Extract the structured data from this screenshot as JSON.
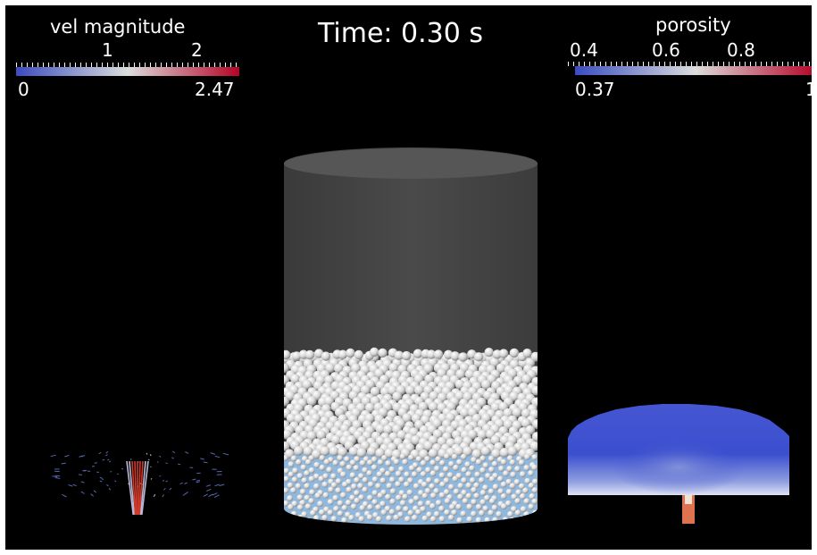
{
  "time_label": "Time: 0.30 s",
  "velocity_legend": {
    "title": "vel magnitude",
    "ticks": [
      "1",
      "2"
    ],
    "min_label": "0",
    "max_label": "2.47",
    "colors": [
      "#3a4cc0",
      "#dcdddd",
      "#b40426"
    ]
  },
  "porosity_legend": {
    "title": "porosity",
    "ticks": [
      "0.4",
      "0.6",
      "0.8"
    ],
    "min_label": "0.37",
    "max_label": "1",
    "colors": [
      "#3a4cc0",
      "#dcdddd",
      "#b40426"
    ]
  },
  "colors": {
    "background": "#000000",
    "cylinder_wall": "#444444",
    "particle": "#dcdcdc",
    "fluid_bed": "#8fb8df",
    "porosity_dense": "#3b4fd0"
  }
}
